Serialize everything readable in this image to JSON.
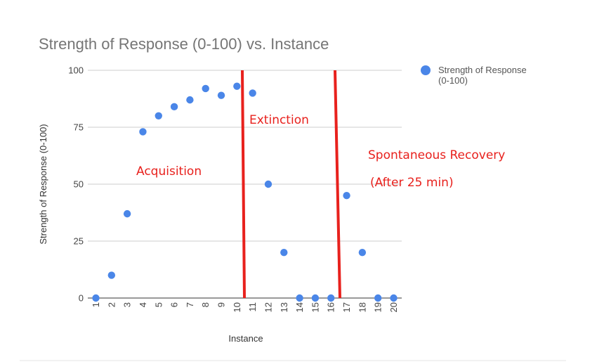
{
  "chart_data": {
    "type": "scatter",
    "title": "Strength of Response (0-100) vs. Instance",
    "xlabel": "Instance",
    "ylabel": "Strength of Response (0-100)",
    "x": [
      1,
      2,
      3,
      4,
      5,
      6,
      7,
      8,
      9,
      10,
      11,
      12,
      13,
      14,
      15,
      16,
      17,
      18,
      19,
      20
    ],
    "series": [
      {
        "name": "Strength of Response (0-100)",
        "color": "#4a86e8",
        "values": [
          0,
          10,
          37,
          73,
          80,
          84,
          87,
          92,
          89,
          93,
          90,
          50,
          20,
          0,
          0,
          0,
          45,
          20,
          0,
          0
        ]
      }
    ],
    "ylim": [
      0,
      100
    ],
    "yticks": [
      0,
      25,
      50,
      75,
      100
    ],
    "grid": true,
    "legend_position": "right",
    "legend_lines": [
      "Strength of Response",
      "(0-100)"
    ],
    "annotations": {
      "acquisition": "Acquisition",
      "extinction": "Extinction",
      "recovery_line1": "Spontaneous Recovery",
      "recovery_line2": "(After 25 min)"
    },
    "phase_divider_color": "#e8211d",
    "phase_dividers_after_instance": [
      10,
      16
    ]
  }
}
